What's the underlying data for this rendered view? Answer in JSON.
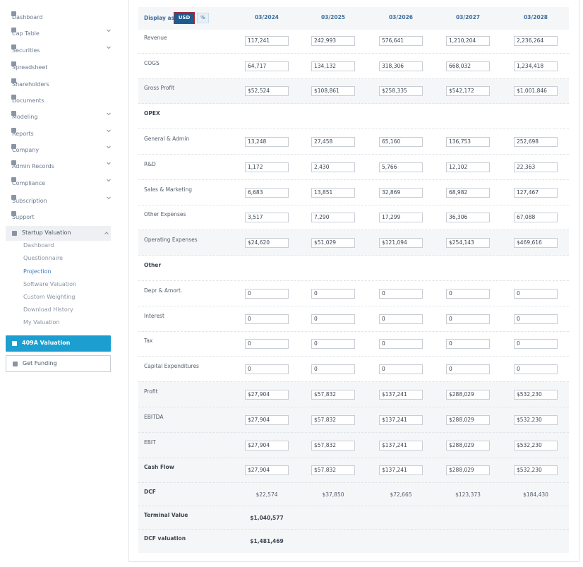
{
  "sidebar": {
    "items": [
      "Dashboard",
      "Cap Table",
      "Securities",
      "Spreadsheet",
      "Shareholders",
      "Documents",
      "Modeling",
      "Reports",
      "Company",
      "Admin Records",
      "Compliance",
      "Subscription",
      "Support"
    ],
    "section": {
      "title": "Startup Valuation",
      "items": [
        "Dashboard",
        "Questionnaire",
        "Projection",
        "Software Valuation",
        "Custom Weighting",
        "Download History",
        "My Valuation"
      ]
    },
    "buttons": [
      "409A Valuation",
      "Get Funding"
    ]
  },
  "table": {
    "display_label": "Display as",
    "toggle": [
      "USD",
      "%"
    ],
    "columns": [
      "03/2024",
      "03/2025",
      "03/2026",
      "03/2027",
      "03/2028"
    ],
    "rows": [
      {
        "label": "Revenue",
        "inputs": [
          "117,241",
          "242,993",
          "576,641",
          "1,210,204",
          "2,236,264"
        ]
      },
      {
        "label": "COGS",
        "inputs": [
          "64,717",
          "134,132",
          "318,306",
          "668,032",
          "1,234,418"
        ]
      },
      {
        "label": "Gross Profit",
        "inputs": [
          "$52,524",
          "$108,861",
          "$258,335",
          "$542,172",
          "$1,001,846"
        ]
      },
      {
        "label": "OPEX"
      },
      {
        "label": "General & Admin",
        "inputs": [
          "13,248",
          "27,458",
          "65,160",
          "136,753",
          "252,698"
        ]
      },
      {
        "label": "R&D",
        "inputs": [
          "1,172",
          "2,430",
          "5,766",
          "12,102",
          "22,363"
        ]
      },
      {
        "label": "Sales & Marketing",
        "inputs": [
          "6,683",
          "13,851",
          "32,869",
          "68,982",
          "127,467"
        ]
      },
      {
        "label": "Other Expenses",
        "inputs": [
          "3,517",
          "7,290",
          "17,299",
          "36,306",
          "67,088"
        ]
      },
      {
        "label": "Operating Expenses",
        "inputs": [
          "$24,620",
          "$51,029",
          "$121,094",
          "$254,143",
          "$469,616"
        ]
      },
      {
        "label": "Other"
      },
      {
        "label": "Depr & Amort.",
        "inputs": [
          "0",
          "0",
          "0",
          "0",
          "0"
        ]
      },
      {
        "label": "Interest",
        "inputs": [
          "0",
          "0",
          "0",
          "0",
          "0"
        ]
      },
      {
        "label": "Tax",
        "inputs": [
          "0",
          "0",
          "0",
          "0",
          "0"
        ]
      },
      {
        "label": "Capital Expenditures",
        "inputs": [
          "0",
          "0",
          "0",
          "0",
          "0"
        ]
      },
      {
        "label": "Profit",
        "inputs": [
          "$27,904",
          "$57,832",
          "$137,241",
          "$288,029",
          "$532,230"
        ]
      },
      {
        "label": "EBITDA",
        "inputs": [
          "$27,904",
          "$57,832",
          "$137,241",
          "$288,029",
          "$532,230"
        ]
      },
      {
        "label": "EBIT",
        "inputs": [
          "$27,904",
          "$57,832",
          "$137,241",
          "$288,029",
          "$532,230"
        ]
      },
      {
        "label": "Cash Flow",
        "inputs": [
          "$27,904",
          "$57,832",
          "$137,241",
          "$288,029",
          "$532,230"
        ]
      },
      {
        "label": "DCF",
        "values": [
          "$22,574",
          "$37,850",
          "$72,665",
          "$123,373",
          "$184,430"
        ]
      },
      {
        "label": "Terminal Value",
        "value": "$1,040,577"
      },
      {
        "label": "DCF valuation",
        "value": "$1,481,469"
      }
    ]
  }
}
